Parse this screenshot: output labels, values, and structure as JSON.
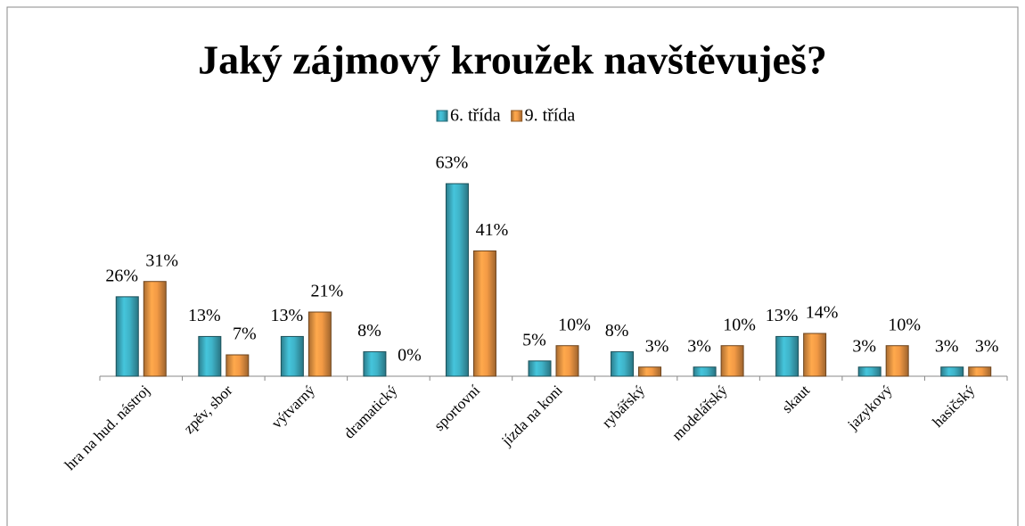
{
  "chart_data": {
    "type": "bar",
    "title": "Jaký zájmový kroužek navštěvuješ?",
    "categories": [
      "hra na hud. nástroj",
      "zpěv, sbor",
      "výtvarný",
      "dramatický",
      "sportovní",
      "jízda na koni",
      "rybářský",
      "modelářský",
      "skaut",
      "jazykový",
      "hasičský"
    ],
    "series": [
      {
        "name": "6. třída",
        "color": "#3fb3c8",
        "values": [
          26,
          13,
          13,
          8,
          63,
          5,
          8,
          3,
          13,
          3,
          3
        ],
        "value_labels": [
          "26%",
          "13%",
          "13%",
          "8%",
          "63%",
          "5%",
          "8%",
          "3%",
          "13%",
          "3%",
          "3%"
        ]
      },
      {
        "name": "9. třída",
        "color": "#f39a45",
        "values": [
          31,
          7,
          21,
          0,
          41,
          10,
          3,
          10,
          14,
          10,
          3
        ],
        "value_labels": [
          "31%",
          "7%",
          "21%",
          "0%",
          "41%",
          "10%",
          "3%",
          "10%",
          "14%",
          "10%",
          "3%"
        ]
      }
    ],
    "ylim": [
      0,
      70
    ],
    "legend": "top"
  }
}
